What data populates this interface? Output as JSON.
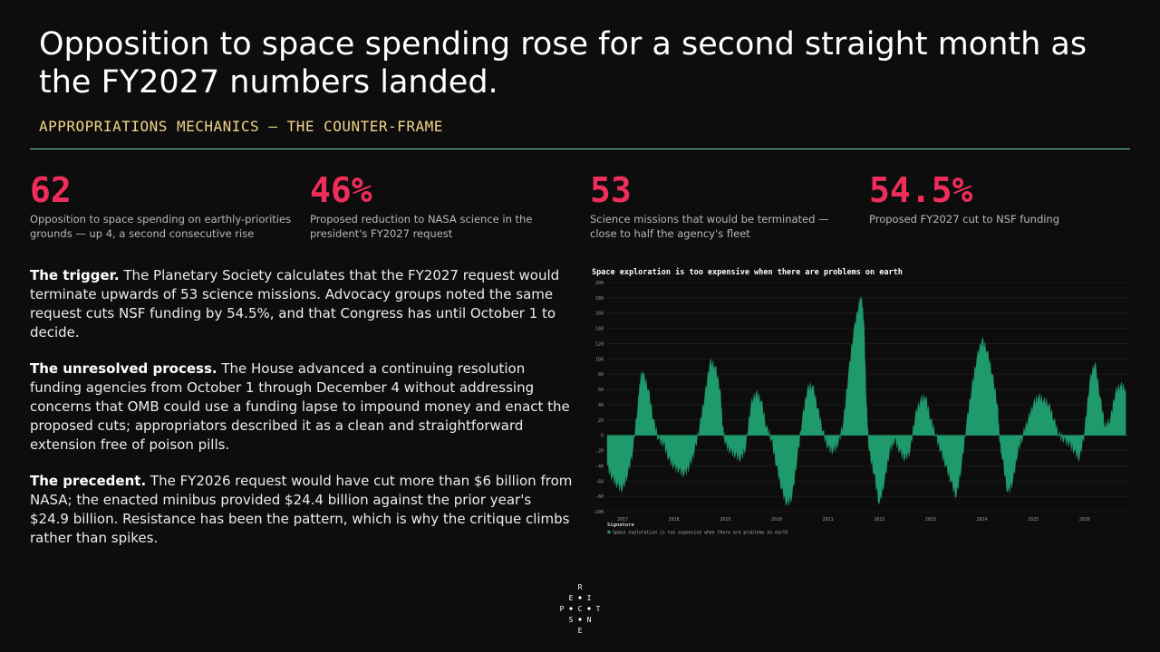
{
  "title": "Opposition to space spending rose for a second straight month as the FY2027 numbers landed.",
  "subtitle": "APPROPRIATIONS MECHANICS — THE COUNTER-FRAME",
  "stats": [
    {
      "value": "62",
      "label": "Opposition to space spending on earthly-priorities grounds — up 4, a second consecutive rise"
    },
    {
      "value": "46%",
      "label": "Proposed reduction to NASA science in the president's FY2027 request"
    },
    {
      "value": "53",
      "label": "Science missions that would be terminated — close to half the agency's fleet"
    },
    {
      "value": "54.5%",
      "label": "Proposed FY2027 cut to NSF funding"
    }
  ],
  "paragraphs": [
    {
      "lead": "The trigger.",
      "text": " The Planetary Society calculates that the FY2027 request would terminate upwards of 53 science missions. Advocacy groups noted the same request cuts NSF funding by 54.5%, and that Congress has until October 1 to decide."
    },
    {
      "lead": "The unresolved process.",
      "text": " The House advanced a continuing resolution funding agencies from October 1 through December 4 without addressing concerns that OMB could use a funding lapse to impound money and enact the proposed cuts; appropriators described it as a clean and straightforward extension free of poison pills."
    },
    {
      "lead": "The precedent.",
      "text": " The FY2026 request would have cut more than $6 billion from NASA; the enacted minibus provided $24.4 billion against the prior year's $24.9 billion. Resistance has been the pattern, which is why the critique climbs rather than spikes."
    }
  ],
  "chart_data": {
    "type": "area",
    "title": "Space exploration is too expensive when there are problems on earth",
    "xlabel": "",
    "ylabel": "",
    "ylim": [
      -100,
      200
    ],
    "xlim": [
      2016.7,
      2026.85
    ],
    "yticks": [
      -100,
      -80,
      -60,
      -40,
      -20,
      0,
      20,
      40,
      60,
      80,
      100,
      120,
      140,
      160,
      180,
      200
    ],
    "xticks": [
      2017,
      2018,
      2019,
      2020,
      2021,
      2022,
      2023,
      2024,
      2025,
      2026
    ],
    "grid": true,
    "legend_title": "Signature",
    "legend_position": "bottom-left",
    "series": [
      {
        "name": "Space exploration is too expensive when there are problems on earth",
        "color": "#1f9a6c",
        "x": [
          2016.7,
          2016.8,
          2016.9,
          2017.0,
          2017.1,
          2017.2,
          2017.3,
          2017.35,
          2017.4,
          2017.5,
          2017.6,
          2017.7,
          2017.8,
          2017.9,
          2018.0,
          2018.1,
          2018.2,
          2018.3,
          2018.4,
          2018.5,
          2018.6,
          2018.7,
          2018.8,
          2018.9,
          2018.95,
          2019.0,
          2019.1,
          2019.2,
          2019.3,
          2019.4,
          2019.5,
          2019.6,
          2019.7,
          2019.8,
          2019.9,
          2020.0,
          2020.1,
          2020.2,
          2020.3,
          2020.4,
          2020.5,
          2020.6,
          2020.7,
          2020.8,
          2020.9,
          2021.0,
          2021.1,
          2021.2,
          2021.3,
          2021.4,
          2021.5,
          2021.6,
          2021.65,
          2021.7,
          2021.75,
          2021.8,
          2021.9,
          2022.0,
          2022.1,
          2022.2,
          2022.3,
          2022.4,
          2022.5,
          2022.6,
          2022.7,
          2022.8,
          2022.9,
          2023.0,
          2023.1,
          2023.2,
          2023.3,
          2023.4,
          2023.5,
          2023.6,
          2023.7,
          2023.8,
          2023.9,
          2024.0,
          2024.1,
          2024.2,
          2024.3,
          2024.35,
          2024.4,
          2024.5,
          2024.6,
          2024.7,
          2024.8,
          2024.9,
          2025.0,
          2025.1,
          2025.2,
          2025.3,
          2025.4,
          2025.5,
          2025.6,
          2025.7,
          2025.8,
          2025.9,
          2026.0,
          2026.1,
          2026.2,
          2026.3,
          2026.4,
          2026.5,
          2026.6,
          2026.7,
          2026.8
        ],
        "values": [
          -40,
          -55,
          -65,
          -70,
          -50,
          -20,
          40,
          75,
          80,
          60,
          20,
          -5,
          -10,
          -30,
          -40,
          -45,
          -50,
          -40,
          -20,
          10,
          50,
          95,
          90,
          60,
          10,
          -10,
          -20,
          -25,
          -30,
          -15,
          40,
          55,
          45,
          10,
          -5,
          -40,
          -70,
          -90,
          -80,
          -30,
          20,
          60,
          65,
          35,
          5,
          -15,
          -20,
          -10,
          15,
          80,
          135,
          170,
          180,
          150,
          40,
          -20,
          -50,
          -90,
          -60,
          -20,
          -5,
          -20,
          -30,
          -20,
          25,
          45,
          50,
          20,
          0,
          -20,
          -40,
          -60,
          -80,
          -40,
          15,
          60,
          100,
          125,
          110,
          80,
          40,
          -10,
          -30,
          -75,
          -60,
          -20,
          0,
          20,
          40,
          50,
          45,
          40,
          20,
          0,
          -5,
          -10,
          -20,
          -30,
          5,
          70,
          95,
          50,
          10,
          20,
          55,
          65,
          60
        ]
      }
    ]
  },
  "logo_letters": [
    "R",
    "E",
    "I",
    "P",
    "C",
    "T",
    "S",
    "N",
    "E"
  ],
  "colors": {
    "background": "#0d0d0d",
    "accent_red": "#ee2d5b",
    "accent_gold": "#f2d58a",
    "divider": "#6fd3a8",
    "series": "#1f9a6c"
  }
}
